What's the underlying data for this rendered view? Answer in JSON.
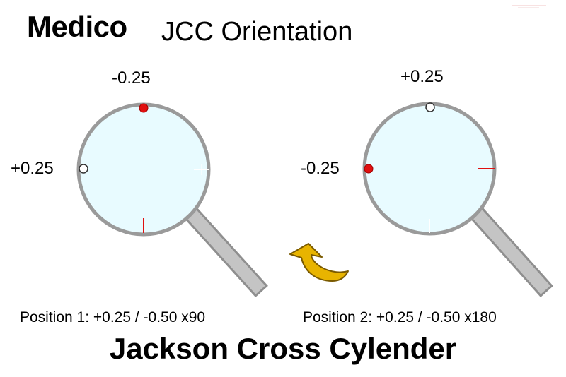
{
  "brand": "Medico",
  "title": "JCC Orientation",
  "lens1": {
    "top_label": "-0.25",
    "left_label": "+0.25",
    "caption": "Position 1: +0.25 / -0.50 x90"
  },
  "lens2": {
    "top_label": "+0.25",
    "left_label": "-0.25",
    "caption": "Position 2: +0.25 / -0.50 x180"
  },
  "footer": "Jackson Cross Cylender",
  "colors": {
    "lens_fill": "#e8fbff",
    "rim": "#9a9a9a",
    "handle": "#b8b8b8",
    "red_dot": "#e01010",
    "rotate_arrow": "#e8b400"
  },
  "icons": {
    "rotate": "curved-arrow-icon"
  }
}
